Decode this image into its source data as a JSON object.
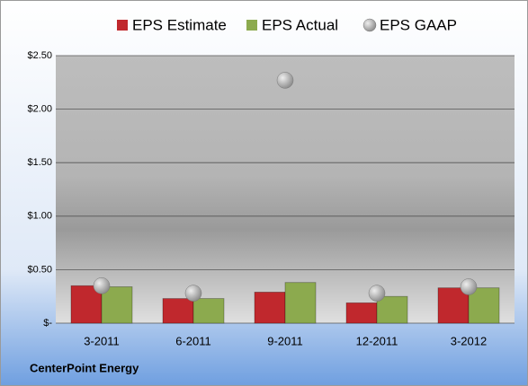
{
  "chart_data": {
    "type": "bar",
    "categories": [
      "3-2011",
      "6-2011",
      "9-2011",
      "12-2011",
      "3-2012"
    ],
    "series": [
      {
        "name": "EPS Estimate",
        "color": "#c0282d",
        "values": [
          0.35,
          0.23,
          0.29,
          0.19,
          0.33
        ]
      },
      {
        "name": "EPS Actual",
        "color": "#8caa4e",
        "values": [
          0.34,
          0.23,
          0.38,
          0.25,
          0.33
        ]
      },
      {
        "name": "EPS GAAP",
        "color": "#a8a8a8",
        "type": "scatter",
        "values": [
          0.35,
          0.28,
          2.27,
          0.28,
          0.34
        ]
      }
    ],
    "ylim": [
      0,
      2.5
    ],
    "yticks": [
      {
        "value": 0,
        "label": "$-"
      },
      {
        "value": 0.5,
        "label": "$0.50"
      },
      {
        "value": 1,
        "label": "$1.00"
      },
      {
        "value": 1.5,
        "label": "$1.50"
      },
      {
        "value": 2,
        "label": "$2.00"
      },
      {
        "value": 2.5,
        "label": "$2.50"
      }
    ],
    "grid": true,
    "legend": "top",
    "footer": "CenterPoint Energy"
  }
}
